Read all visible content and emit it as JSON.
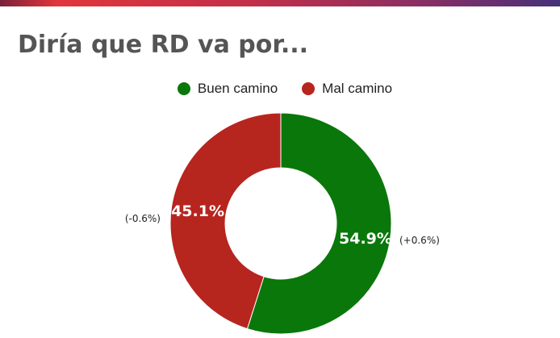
{
  "chart_data": {
    "type": "pie",
    "title": "Diría que RD va por...",
    "legend_position": "top",
    "slices": [
      {
        "name": "Buen camino",
        "value": 54.9,
        "label": "54.9%",
        "change": "(+0.6%)",
        "color": "#0a770a"
      },
      {
        "name": "Mal camino",
        "value": 45.1,
        "label": "45.1%",
        "change": "(-0.6%)",
        "color": "#b7251f"
      }
    ]
  }
}
